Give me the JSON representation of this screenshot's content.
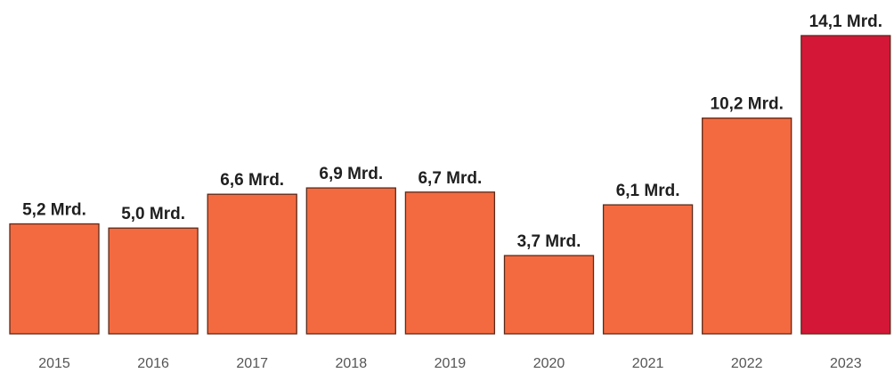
{
  "chart_data": {
    "type": "bar",
    "title": "",
    "xlabel": "",
    "ylabel": "",
    "categories": [
      "2015",
      "2016",
      "2017",
      "2018",
      "2019",
      "2020",
      "2021",
      "2022",
      "2023"
    ],
    "values": [
      5.2,
      5.0,
      6.6,
      6.9,
      6.7,
      3.7,
      6.1,
      10.2,
      14.1
    ],
    "data_labels": [
      "5,2 Mrd.",
      "5,0 Mrd.",
      "6,6 Mrd.",
      "6,9 Mrd.",
      "6,7 Mrd.",
      "3,7 Mrd.",
      "6,1 Mrd.",
      "10,2 Mrd.",
      "14,1 Mrd."
    ],
    "ylim": [
      0,
      14.1
    ],
    "grid": false,
    "colors": {
      "default_bar": "#f46a40",
      "highlight_bar": "#d41737",
      "bar_border": "#5a2a1a"
    },
    "highlighted_category": "2023"
  }
}
